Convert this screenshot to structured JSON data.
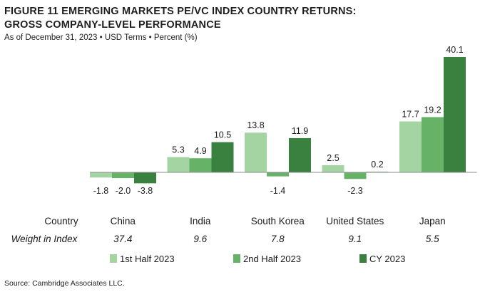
{
  "header": {
    "title_line1": "FIGURE 11   EMERGING MARKETS PE/VC INDEX COUNTRY RETURNS:",
    "title_line2": "GROSS COMPANY-LEVEL PERFORMANCE",
    "subtitle": "As of December 31, 2023 • USD Terms • Percent (%)"
  },
  "table": {
    "country_header": "Country",
    "weight_header": "Weight in Index",
    "weights": [
      "37.4",
      "9.6",
      "7.8",
      "9.1",
      "5.5"
    ]
  },
  "source": "Source: Cambridge Associates LLC.",
  "colors": {
    "first_half": "#a3d4a1",
    "second_half": "#66b368",
    "cy": "#3a8140",
    "axis": "#8c8c8c"
  },
  "chart_data": {
    "type": "bar",
    "categories": [
      "China",
      "India",
      "South Korea",
      "United States",
      "Japan"
    ],
    "series": [
      {
        "name": "1st Half 2023",
        "values": [
          -1.8,
          5.3,
          13.8,
          2.5,
          17.7
        ],
        "labels": [
          "-1.8",
          "5.3",
          "13.8",
          "2.5",
          "17.7"
        ]
      },
      {
        "name": "2nd Half 2023",
        "values": [
          -2.0,
          4.9,
          -1.4,
          -2.3,
          19.2
        ],
        "labels": [
          "-2.0",
          "4.9",
          "-1.4",
          "-2.3",
          "19.2"
        ]
      },
      {
        "name": "CY 2023",
        "values": [
          -3.8,
          10.5,
          11.9,
          0.2,
          40.1
        ],
        "labels": [
          "-3.8",
          "10.5",
          "11.9",
          "0.2",
          "40.1"
        ]
      }
    ],
    "legend_position": "bottom",
    "grid": false
  }
}
